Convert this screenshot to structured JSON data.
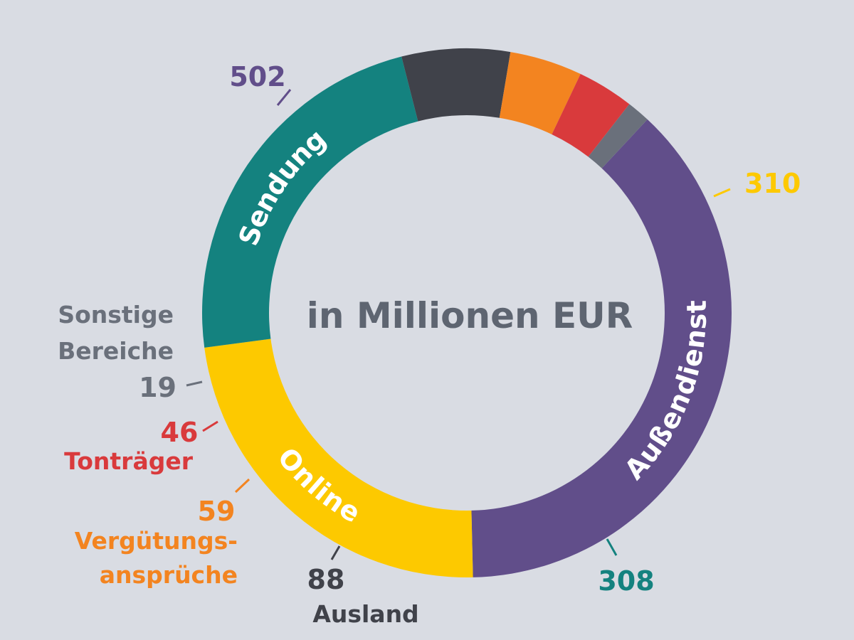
{
  "chart_data": {
    "type": "pie",
    "title": "in Millionen EUR",
    "categories": [
      "Außendienst",
      "Online",
      "Sendung",
      "Ausland",
      "Vergütungsansprüche",
      "Tonträger",
      "Sonstige Bereiche"
    ],
    "values": [
      502,
      310,
      308,
      88,
      59,
      46,
      19
    ],
    "series": [
      {
        "name": "Außendienst",
        "value": 502,
        "value_label": "502",
        "color": "#614e8a",
        "label_lines": [
          "Außendienst"
        ]
      },
      {
        "name": "Online",
        "value": 310,
        "value_label": "310",
        "color": "#fdc900",
        "label_lines": [
          "Online"
        ]
      },
      {
        "name": "Sendung",
        "value": 308,
        "value_label": "308",
        "color": "#14827f",
        "label_lines": [
          "Sendung"
        ]
      },
      {
        "name": "Ausland",
        "value": 88,
        "value_label": "88",
        "color": "#40424a",
        "label_lines": [
          "Ausland"
        ]
      },
      {
        "name": "Vergütungsansprüche",
        "value": 59,
        "value_label": "59",
        "color": "#f38420",
        "label_lines": [
          "Vergütungs-",
          "ansprüche"
        ]
      },
      {
        "name": "Tonträger",
        "value": 46,
        "value_label": "46",
        "color": "#d93a3c",
        "label_lines": [
          "Tonträger"
        ]
      },
      {
        "name": "Sonstige Bereiche",
        "value": 19,
        "value_label": "19",
        "color": "#6a707b",
        "label_lines": [
          "Sonstige",
          "Bereiche"
        ]
      }
    ],
    "center_text_color": "#5e6571",
    "background": "#d9dce3"
  }
}
